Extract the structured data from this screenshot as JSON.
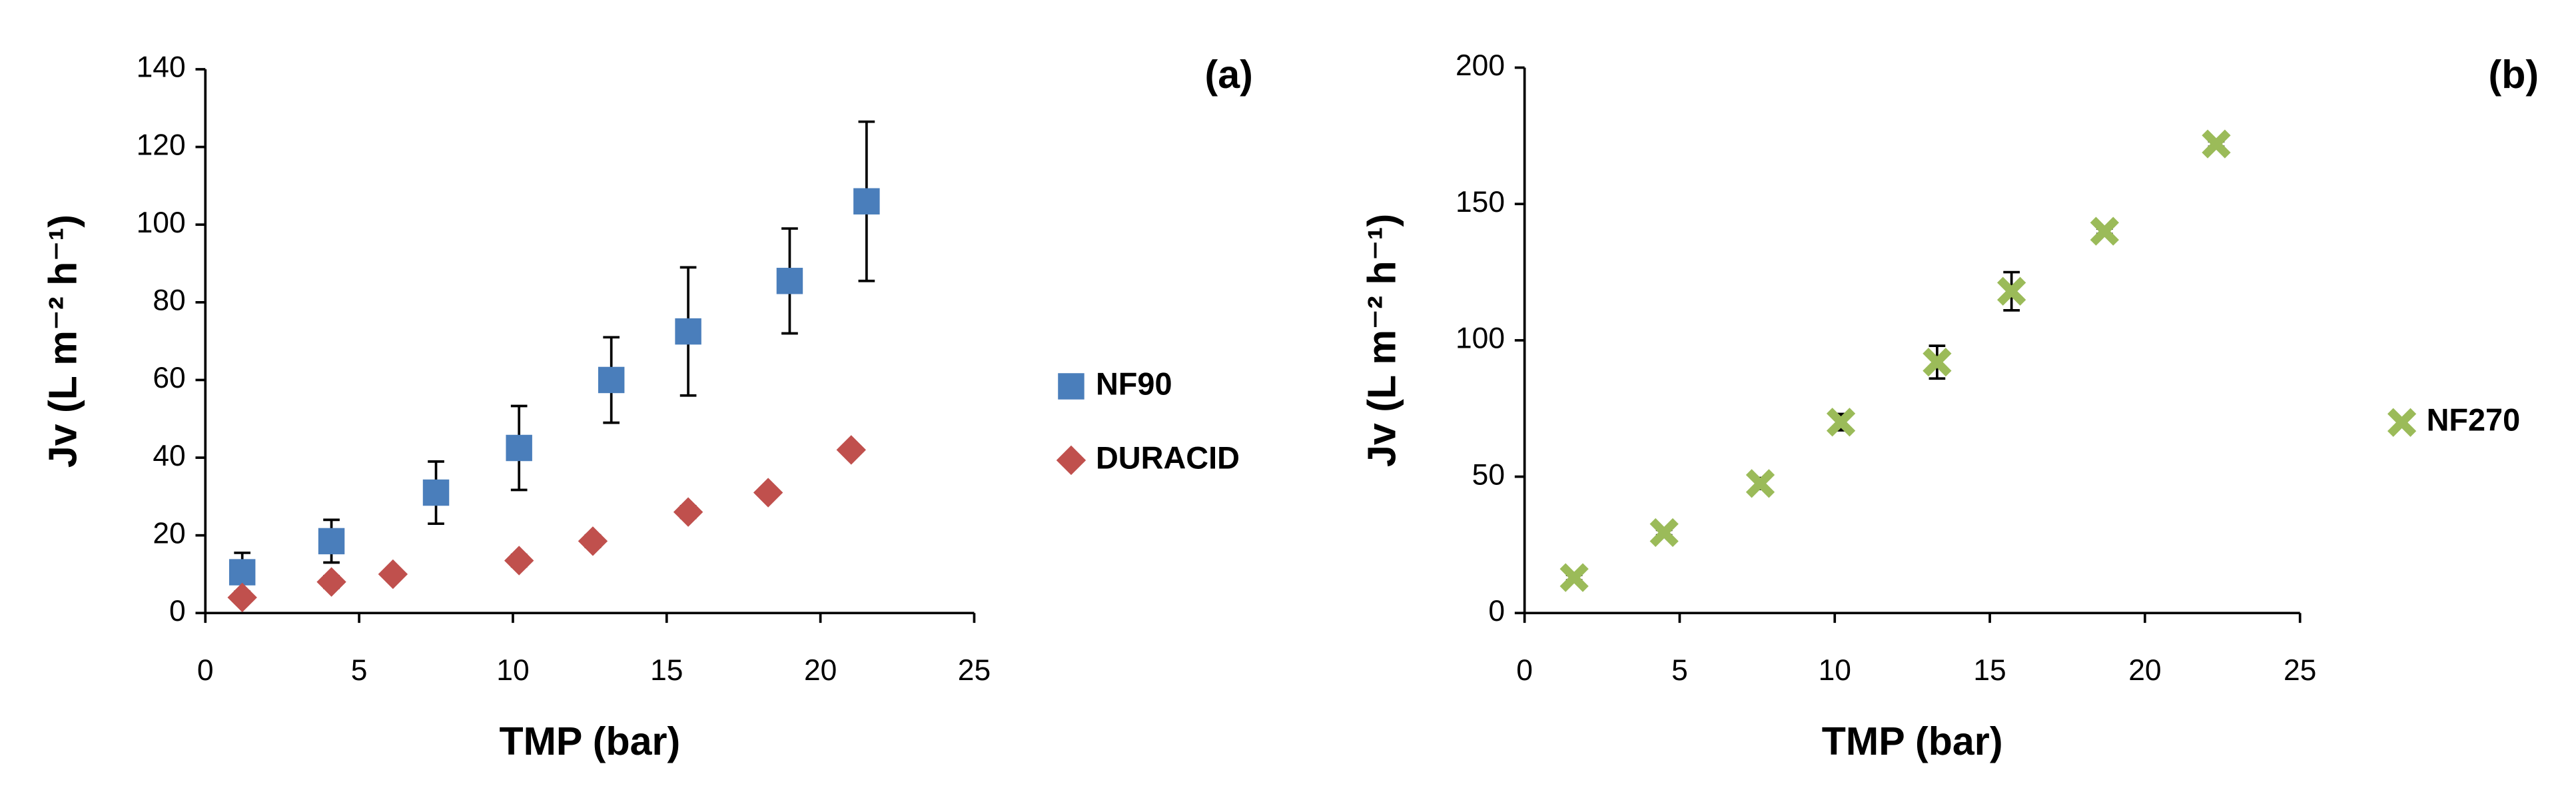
{
  "chart_data": [
    {
      "type": "scatter",
      "annotation": "(a)",
      "xlabel": "TMP (bar)",
      "ylabel": "Jv (L m⁻² h⁻¹)",
      "xlim": [
        0,
        25
      ],
      "xticks": [
        0,
        5,
        10,
        15,
        20,
        25
      ],
      "ylim": [
        0,
        140
      ],
      "yticks": [
        0,
        20,
        40,
        60,
        80,
        100,
        120,
        140
      ],
      "legend": "right",
      "series": [
        {
          "name": "NF90",
          "color": "#4a7ebb",
          "marker": "square",
          "x": [
            1.2,
            4.1,
            7.5,
            10.2,
            13.2,
            15.7,
            19,
            21.5
          ],
          "values": [
            10.5,
            18.5,
            31,
            42.5,
            60,
            72.5,
            85.5,
            106
          ],
          "errors": [
            5,
            5.5,
            8,
            10.8,
            11,
            16.5,
            13.5,
            20.5
          ]
        },
        {
          "name": "DURACID",
          "color": "#c0504d",
          "marker": "diamond",
          "x": [
            1.2,
            4.1,
            6.1,
            10.2,
            12.6,
            15.7,
            18.3,
            21
          ],
          "values": [
            4,
            8,
            10,
            13.5,
            18.5,
            26,
            31,
            42
          ],
          "errors": [
            1,
            1.5,
            0.5,
            1.5,
            1.5,
            1.5,
            0.5,
            0.5
          ]
        }
      ]
    },
    {
      "type": "scatter",
      "annotation": "(b)",
      "xlabel": "TMP (bar)",
      "ylabel": "Jv (L m⁻² h⁻¹)",
      "xlim": [
        0,
        25
      ],
      "xticks": [
        0,
        5,
        10,
        15,
        20,
        25
      ],
      "ylim": [
        0,
        200
      ],
      "yticks": [
        0,
        50,
        100,
        150,
        200
      ],
      "legend": "right",
      "series": [
        {
          "name": "NF270",
          "color": "#9bbb59",
          "marker": "x",
          "x": [
            1.6,
            4.5,
            7.6,
            10.2,
            13.3,
            15.7,
            18.7,
            22.3
          ],
          "values": [
            13,
            29.5,
            47.5,
            70,
            92,
            118,
            140,
            172
          ],
          "errors": [
            1,
            1,
            2,
            3,
            6,
            7,
            1,
            1
          ]
        }
      ]
    }
  ]
}
